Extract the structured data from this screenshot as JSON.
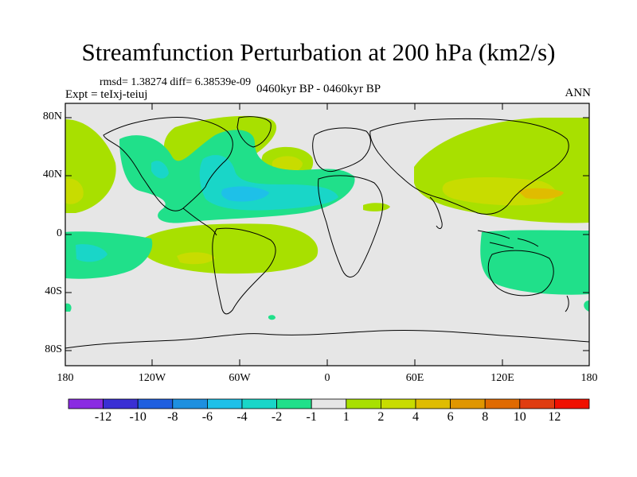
{
  "title": "Streamfunction Perturbation at 200 hPa (km2/s)",
  "stats": "rmsd= 1.38274 diff= 6.38539e-09",
  "experiment": "Expt = teIxj-teiuj",
  "period": "0460kyr BP - 0460kyr BP",
  "season": "ANN",
  "lat_labels": [
    "80N",
    "40N",
    "0",
    "40S",
    "80S"
  ],
  "lon_labels": [
    "180",
    "120W",
    "60W",
    "0",
    "60E",
    "120E",
    "180"
  ],
  "colorbar": {
    "labels": [
      "-12",
      "-10",
      "-8",
      "-6",
      "-4",
      "-2",
      "-1",
      "1",
      "2",
      "4",
      "6",
      "8",
      "10",
      "12"
    ],
    "colors": [
      "#8a2be2",
      "#3a2fd4",
      "#1f5fe0",
      "#1e90e0",
      "#1ec0e8",
      "#19d6c8",
      "#20e08a",
      "#e6e6e6",
      "#a8e000",
      "#c8dc00",
      "#e0bc00",
      "#e09600",
      "#e06a00",
      "#e03c10",
      "#f01000"
    ]
  },
  "colors": {
    "neutral": "#e6e6e6",
    "neg1": "#20e08a",
    "neg2": "#19d6c8",
    "neg4": "#1ec0e8",
    "pos1": "#a8e000",
    "pos2": "#c8dc00",
    "pos4": "#e0bc00"
  }
}
